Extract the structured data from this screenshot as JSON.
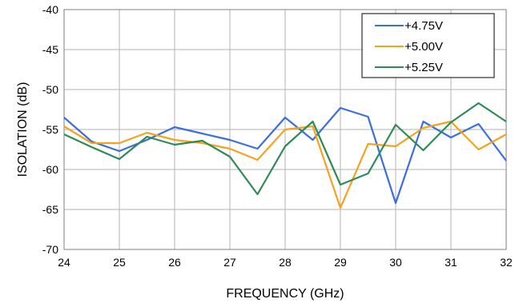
{
  "chart_data": {
    "type": "line",
    "title": "",
    "xlabel": "FREQUENCY (GHz)",
    "ylabel": "ISOLATION (dB)",
    "xlim": [
      24,
      32
    ],
    "ylim": [
      -70,
      -40
    ],
    "xticks": [
      24,
      25,
      26,
      27,
      28,
      29,
      30,
      31,
      32
    ],
    "yticks": [
      -70,
      -65,
      -60,
      -55,
      -50,
      -45,
      -40
    ],
    "grid": true,
    "legend_position": "top-right",
    "x": [
      24,
      24.5,
      25,
      25.5,
      26,
      26.5,
      27,
      27.5,
      28,
      28.5,
      29,
      29.5,
      30,
      30.5,
      31,
      31.5,
      32
    ],
    "series": [
      {
        "name": "+4.75V",
        "color": "#3B6FE0",
        "values": [
          -53.5,
          -56.5,
          -57.7,
          -56.3,
          -54.7,
          -55.5,
          -56.3,
          -57.4,
          -53.5,
          -56.3,
          -52.3,
          -53.4,
          -64.2,
          -54.0,
          -56.0,
          -54.3,
          -58.9
        ]
      },
      {
        "name": "+5.00V",
        "color": "#F5A31E",
        "values": [
          -54.6,
          -56.7,
          -56.7,
          -55.4,
          -56.3,
          -56.7,
          -57.4,
          -58.8,
          -55.0,
          -54.6,
          -64.8,
          -56.8,
          -57.1,
          -54.8,
          -54.0,
          -57.5,
          -55.6
        ]
      },
      {
        "name": "+5.25V",
        "color": "#2E8B57",
        "values": [
          -55.6,
          -57.2,
          -58.7,
          -55.9,
          -56.9,
          -56.4,
          -58.4,
          -63.1,
          -57.1,
          -54.0,
          -61.9,
          -60.5,
          -54.4,
          -57.6,
          -54.1,
          -51.7,
          -54.0
        ]
      }
    ]
  }
}
